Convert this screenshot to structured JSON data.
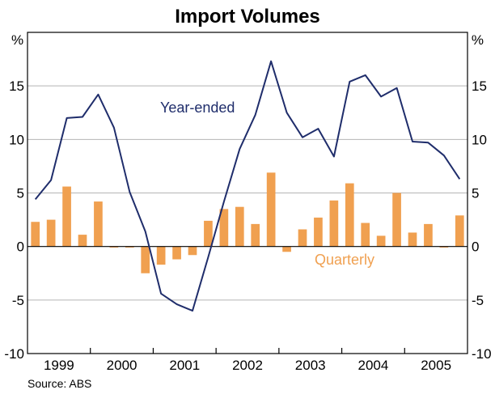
{
  "chart_data": {
    "type": "bar+line",
    "title": "Import Volumes",
    "unit_left": "%",
    "unit_right": "%",
    "ylim": [
      -10,
      20
    ],
    "yticks": [
      -10,
      -5,
      0,
      5,
      10,
      15
    ],
    "source": "Source: ABS",
    "years": [
      "1999",
      "2000",
      "2001",
      "2002",
      "2003",
      "2004",
      "2005"
    ],
    "quarters": [
      "1999Q1",
      "1999Q2",
      "1999Q3",
      "1999Q4",
      "2000Q1",
      "2000Q2",
      "2000Q3",
      "2000Q4",
      "2001Q1",
      "2001Q2",
      "2001Q3",
      "2001Q4",
      "2002Q1",
      "2002Q2",
      "2002Q3",
      "2002Q4",
      "2003Q1",
      "2003Q2",
      "2003Q3",
      "2003Q4",
      "2004Q1",
      "2004Q2",
      "2004Q3",
      "2004Q4",
      "2005Q1",
      "2005Q2",
      "2005Q3",
      "2005Q4"
    ],
    "series": [
      {
        "name": "Quarterly",
        "kind": "bar",
        "color": "#f0a050",
        "values": [
          2.3,
          2.5,
          5.6,
          1.1,
          4.2,
          -0.1,
          -0.1,
          -2.5,
          -1.7,
          -1.2,
          -0.8,
          2.4,
          3.5,
          3.7,
          2.1,
          6.9,
          -0.5,
          1.6,
          2.7,
          4.3,
          5.9,
          2.2,
          1.0,
          5.0,
          1.3,
          2.1,
          -0.1,
          2.9
        ]
      },
      {
        "name": "Year-ended",
        "kind": "line",
        "color": "#1f2d6b",
        "values": [
          4.4,
          6.2,
          12.0,
          12.1,
          14.2,
          11.1,
          5.1,
          1.4,
          -4.4,
          -5.4,
          -6.0,
          -1.0,
          4.2,
          9.1,
          12.3,
          17.3,
          12.5,
          10.2,
          11.0,
          8.4,
          15.4,
          16.0,
          14.0,
          14.8,
          9.8,
          9.7,
          8.5,
          6.3
        ]
      }
    ]
  }
}
